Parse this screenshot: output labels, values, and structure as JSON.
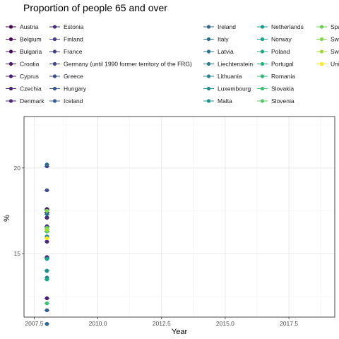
{
  "chart_data": {
    "type": "scatter",
    "title": "Proportion of people 65 and over",
    "xlabel": "Year",
    "ylabel": "%",
    "xlim": [
      2007.1,
      2019.3
    ],
    "ylim": [
      11.3,
      23.0
    ],
    "x_ticks": [
      2007.5,
      2010.0,
      2012.5,
      2015.0,
      2017.5
    ],
    "x_tick_labels": [
      "2007.5",
      "2010.0",
      "2012.5",
      "2015.0",
      "2017.5"
    ],
    "y_ticks": [
      15,
      20
    ],
    "y_tick_labels": [
      "15",
      "20"
    ],
    "grid": true,
    "legend_position": "top",
    "legend_columns": [
      [
        "Austria",
        "Belgium",
        "Bulgaria",
        "Croatia",
        "Cyprus",
        "Czechia",
        "Denmark"
      ],
      [
        "Estonia",
        "Finland",
        "France",
        "Germany (until 1990 former territory of the FRG)",
        "Greece",
        "Hungary",
        "Iceland"
      ],
      [
        "Ireland",
        "Italy",
        "Latvia",
        "Liechtenstein",
        "Lithuania",
        "Luxembourg",
        "Malta"
      ],
      [
        "Netherlands",
        "Norway",
        "Poland",
        "Portugal",
        "Romania",
        "Slovakia",
        "Slovenia"
      ],
      [
        "Spa",
        "Swe",
        "Swit",
        "Unit"
      ]
    ],
    "series": [
      {
        "name": "Austria",
        "color": "#440154",
        "x": [
          2008
        ],
        "y": [
          17.4
        ]
      },
      {
        "name": "Belgium",
        "color": "#46085c",
        "x": [
          2008
        ],
        "y": [
          17.1
        ]
      },
      {
        "name": "Bulgaria",
        "color": "#471063",
        "x": [
          2008
        ],
        "y": [
          17.6
        ]
      },
      {
        "name": "Croatia",
        "color": "#481769",
        "x": [
          2008
        ],
        "y": [
          17.4
        ]
      },
      {
        "name": "Cyprus",
        "color": "#481d6f",
        "x": [
          2008
        ],
        "y": [
          12.4
        ]
      },
      {
        "name": "Czechia",
        "color": "#482475",
        "x": [
          2008
        ],
        "y": [
          14.8
        ]
      },
      {
        "name": "Denmark",
        "color": "#472a7a",
        "x": [
          2008
        ],
        "y": [
          15.7
        ]
      },
      {
        "name": "Estonia",
        "color": "#46307e",
        "x": [
          2008
        ],
        "y": [
          17.1
        ]
      },
      {
        "name": "Finland",
        "color": "#443983",
        "x": [
          2008
        ],
        "y": [
          16.6
        ]
      },
      {
        "name": "France",
        "color": "#423f85",
        "x": [
          2008
        ],
        "y": [
          16.5
        ]
      },
      {
        "name": "Germany (until 1990 former territory of the FRG)",
        "color": "#3f4788",
        "x": [
          2008
        ],
        "y": [
          20.1
        ]
      },
      {
        "name": "Greece",
        "color": "#3c4f8a",
        "x": [
          2008
        ],
        "y": [
          18.7
        ]
      },
      {
        "name": "Hungary",
        "color": "#38588c",
        "x": [
          2008
        ],
        "y": [
          16.3
        ]
      },
      {
        "name": "Iceland",
        "color": "#355e8d",
        "x": [
          2008
        ],
        "y": [
          11.7
        ]
      },
      {
        "name": "Ireland",
        "color": "#31668e",
        "x": [
          2008
        ],
        "y": [
          10.9
        ]
      },
      {
        "name": "Italy",
        "color": "#2e6d8e",
        "x": [
          2008
        ],
        "y": [
          20.2
        ]
      },
      {
        "name": "Latvia",
        "color": "#2b748e",
        "x": [
          2008
        ],
        "y": [
          17.3
        ]
      },
      {
        "name": "Liechtenstein",
        "color": "#297b8e",
        "x": [
          2008
        ],
        "y": [
          13.6
        ]
      },
      {
        "name": "Lithuania",
        "color": "#26818e",
        "x": [
          2008
        ],
        "y": [
          16.0
        ]
      },
      {
        "name": "Luxembourg",
        "color": "#238a8d",
        "x": [
          2008
        ],
        "y": [
          14.0
        ]
      },
      {
        "name": "Malta",
        "color": "#21918c",
        "x": [
          2008
        ],
        "y": [
          14.0
        ]
      },
      {
        "name": "Netherlands",
        "color": "#1f988b",
        "x": [
          2008
        ],
        "y": [
          14.7
        ]
      },
      {
        "name": "Norway",
        "color": "#1fa188",
        "x": [
          2008
        ],
        "y": [
          14.7
        ]
      },
      {
        "name": "Poland",
        "color": "#22a884",
        "x": [
          2008
        ],
        "y": [
          13.5
        ]
      },
      {
        "name": "Portugal",
        "color": "#2ab07f",
        "x": [
          2008
        ],
        "y": [
          17.5
        ]
      },
      {
        "name": "Romania",
        "color": "#35b779",
        "x": [
          2008
        ],
        "y": [
          16.4
        ]
      },
      {
        "name": "Slovakia",
        "color": "#44bf70",
        "x": [
          2008
        ],
        "y": [
          12.1
        ]
      },
      {
        "name": "Slovenia",
        "color": "#56c667",
        "x": [
          2008
        ],
        "y": [
          16.3
        ]
      },
      {
        "name": "Spa",
        "color": "#6ccd5a",
        "x": [
          2008
        ],
        "y": [
          16.5
        ]
      },
      {
        "name": "Swe",
        "color": "#7fd34e",
        "x": [
          2008
        ],
        "y": [
          17.5
        ]
      },
      {
        "name": "Swit",
        "color": "#a0da39",
        "x": [
          2008
        ],
        "y": [
          16.4
        ]
      },
      {
        "name": "Unit",
        "color": "#fde725",
        "x": [
          2008
        ],
        "y": [
          15.9
        ]
      }
    ]
  }
}
